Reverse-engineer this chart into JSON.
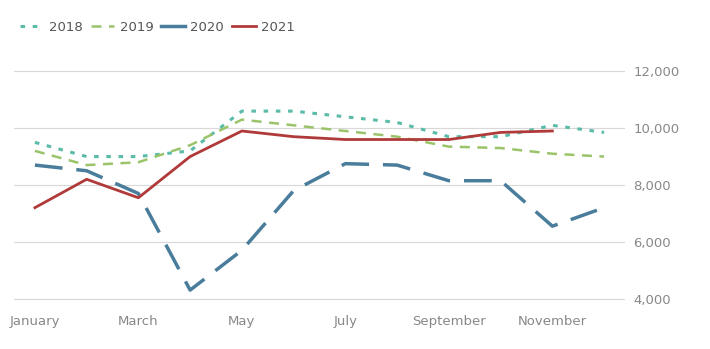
{
  "series": {
    "2018": {
      "values": [
        9500,
        9000,
        9000,
        9200,
        10600,
        10600,
        10400,
        10200,
        9700,
        9700,
        10100,
        9850
      ],
      "color": "#5abba8",
      "linestyle": "dotted",
      "linewidth": 2.2,
      "dot_size": 3,
      "label": "2018"
    },
    "2019": {
      "values": [
        9200,
        8700,
        8800,
        9400,
        10300,
        10100,
        9900,
        9700,
        9350,
        9300,
        9100,
        9000
      ],
      "color": "#9bc46a",
      "linestyle": "dashed_small",
      "linewidth": 1.8,
      "label": "2019"
    },
    "2020": {
      "values": [
        8700,
        8500,
        7700,
        4300,
        5700,
        7800,
        8750,
        8700,
        8150,
        8150,
        6550,
        7200
      ],
      "color": "#4a7d9b",
      "linestyle": "dashed_large",
      "linewidth": 2.5,
      "label": "2020"
    },
    "2021": {
      "values": [
        7200,
        8200,
        7550,
        9000,
        9900,
        9700,
        9600,
        9600,
        9600,
        9850,
        9900,
        null
      ],
      "color": "#b03a3a",
      "linestyle": "solid",
      "linewidth": 2.0,
      "label": "2021"
    }
  },
  "ylim": [
    3700,
    12300
  ],
  "yticks": [
    4000,
    6000,
    8000,
    10000,
    12000
  ],
  "xtick_labels": [
    "January",
    "March",
    "May",
    "July",
    "September",
    "November"
  ],
  "xtick_positions": [
    0,
    2,
    4,
    6,
    8,
    10
  ],
  "legend_order": [
    "2018",
    "2019",
    "2020",
    "2021"
  ],
  "background_color": "#ffffff",
  "grid_color": "#d8d8d8",
  "tick_label_color": "#888888",
  "figsize": [
    7.1,
    3.49
  ],
  "dpi": 100
}
